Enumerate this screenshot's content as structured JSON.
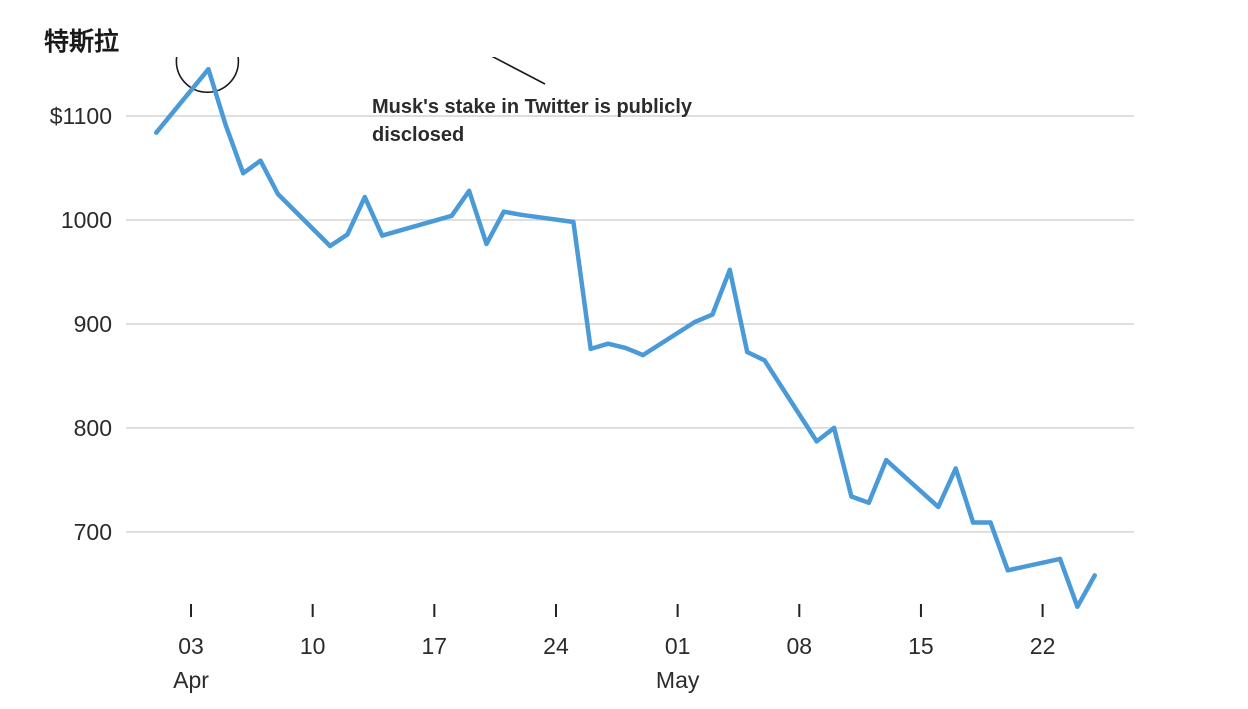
{
  "chart_data": {
    "type": "line",
    "title": "特斯拉",
    "xlabel": "",
    "ylabel": "",
    "ylim": [
      620,
      1160
    ],
    "grid": "horizontal",
    "line_color": "#4a9ad8",
    "grid_color": "#d4d4d4",
    "y_ticks": [
      {
        "value": 1100,
        "label": "$1100"
      },
      {
        "value": 1000,
        "label": "1000"
      },
      {
        "value": 900,
        "label": "900"
      },
      {
        "value": 800,
        "label": "800"
      },
      {
        "value": 700,
        "label": "700"
      }
    ],
    "x_ticks": [
      {
        "date": "2022-04-03",
        "label": "03",
        "sublabel": "Apr"
      },
      {
        "date": "2022-04-10",
        "label": "10",
        "sublabel": ""
      },
      {
        "date": "2022-04-17",
        "label": "17",
        "sublabel": ""
      },
      {
        "date": "2022-04-24",
        "label": "24",
        "sublabel": ""
      },
      {
        "date": "2022-05-01",
        "label": "01",
        "sublabel": "May"
      },
      {
        "date": "2022-05-08",
        "label": "08",
        "sublabel": ""
      },
      {
        "date": "2022-05-15",
        "label": "15",
        "sublabel": ""
      },
      {
        "date": "2022-05-22",
        "label": "22",
        "sublabel": ""
      }
    ],
    "x_range": [
      "2022-03-30",
      "2022-05-27"
    ],
    "series": [
      {
        "name": "",
        "points": [
          {
            "x": "2022-04-01",
            "y": 1084
          },
          {
            "x": "2022-04-04",
            "y": 1145
          },
          {
            "x": "2022-04-05",
            "y": 1091
          },
          {
            "x": "2022-04-06",
            "y": 1045
          },
          {
            "x": "2022-04-07",
            "y": 1057
          },
          {
            "x": "2022-04-08",
            "y": 1025
          },
          {
            "x": "2022-04-11",
            "y": 975
          },
          {
            "x": "2022-04-12",
            "y": 986
          },
          {
            "x": "2022-04-13",
            "y": 1022
          },
          {
            "x": "2022-04-14",
            "y": 985
          },
          {
            "x": "2022-04-18",
            "y": 1004
          },
          {
            "x": "2022-04-19",
            "y": 1028
          },
          {
            "x": "2022-04-20",
            "y": 977
          },
          {
            "x": "2022-04-21",
            "y": 1008
          },
          {
            "x": "2022-04-22",
            "y": 1005
          },
          {
            "x": "2022-04-25",
            "y": 998
          },
          {
            "x": "2022-04-26",
            "y": 876
          },
          {
            "x": "2022-04-27",
            "y": 881
          },
          {
            "x": "2022-04-28",
            "y": 877
          },
          {
            "x": "2022-04-29",
            "y": 870
          },
          {
            "x": "2022-05-02",
            "y": 902
          },
          {
            "x": "2022-05-03",
            "y": 909
          },
          {
            "x": "2022-05-04",
            "y": 952
          },
          {
            "x": "2022-05-05",
            "y": 873
          },
          {
            "x": "2022-05-06",
            "y": 865
          },
          {
            "x": "2022-05-09",
            "y": 787
          },
          {
            "x": "2022-05-10",
            "y": 800
          },
          {
            "x": "2022-05-11",
            "y": 734
          },
          {
            "x": "2022-05-12",
            "y": 728
          },
          {
            "x": "2022-05-13",
            "y": 769
          },
          {
            "x": "2022-05-16",
            "y": 724
          },
          {
            "x": "2022-05-17",
            "y": 761
          },
          {
            "x": "2022-05-18",
            "y": 709
          },
          {
            "x": "2022-05-19",
            "y": 709
          },
          {
            "x": "2022-05-20",
            "y": 663
          },
          {
            "x": "2022-05-23",
            "y": 674
          },
          {
            "x": "2022-05-24",
            "y": 628
          },
          {
            "x": "2022-05-25",
            "y": 658
          }
        ]
      }
    ],
    "annotations": [
      {
        "text_lines": [
          "Musk's stake in Twitter is publicly",
          "disclosed"
        ],
        "target": {
          "x": "2022-04-04",
          "y": 1145
        },
        "marker": "circle"
      }
    ]
  }
}
